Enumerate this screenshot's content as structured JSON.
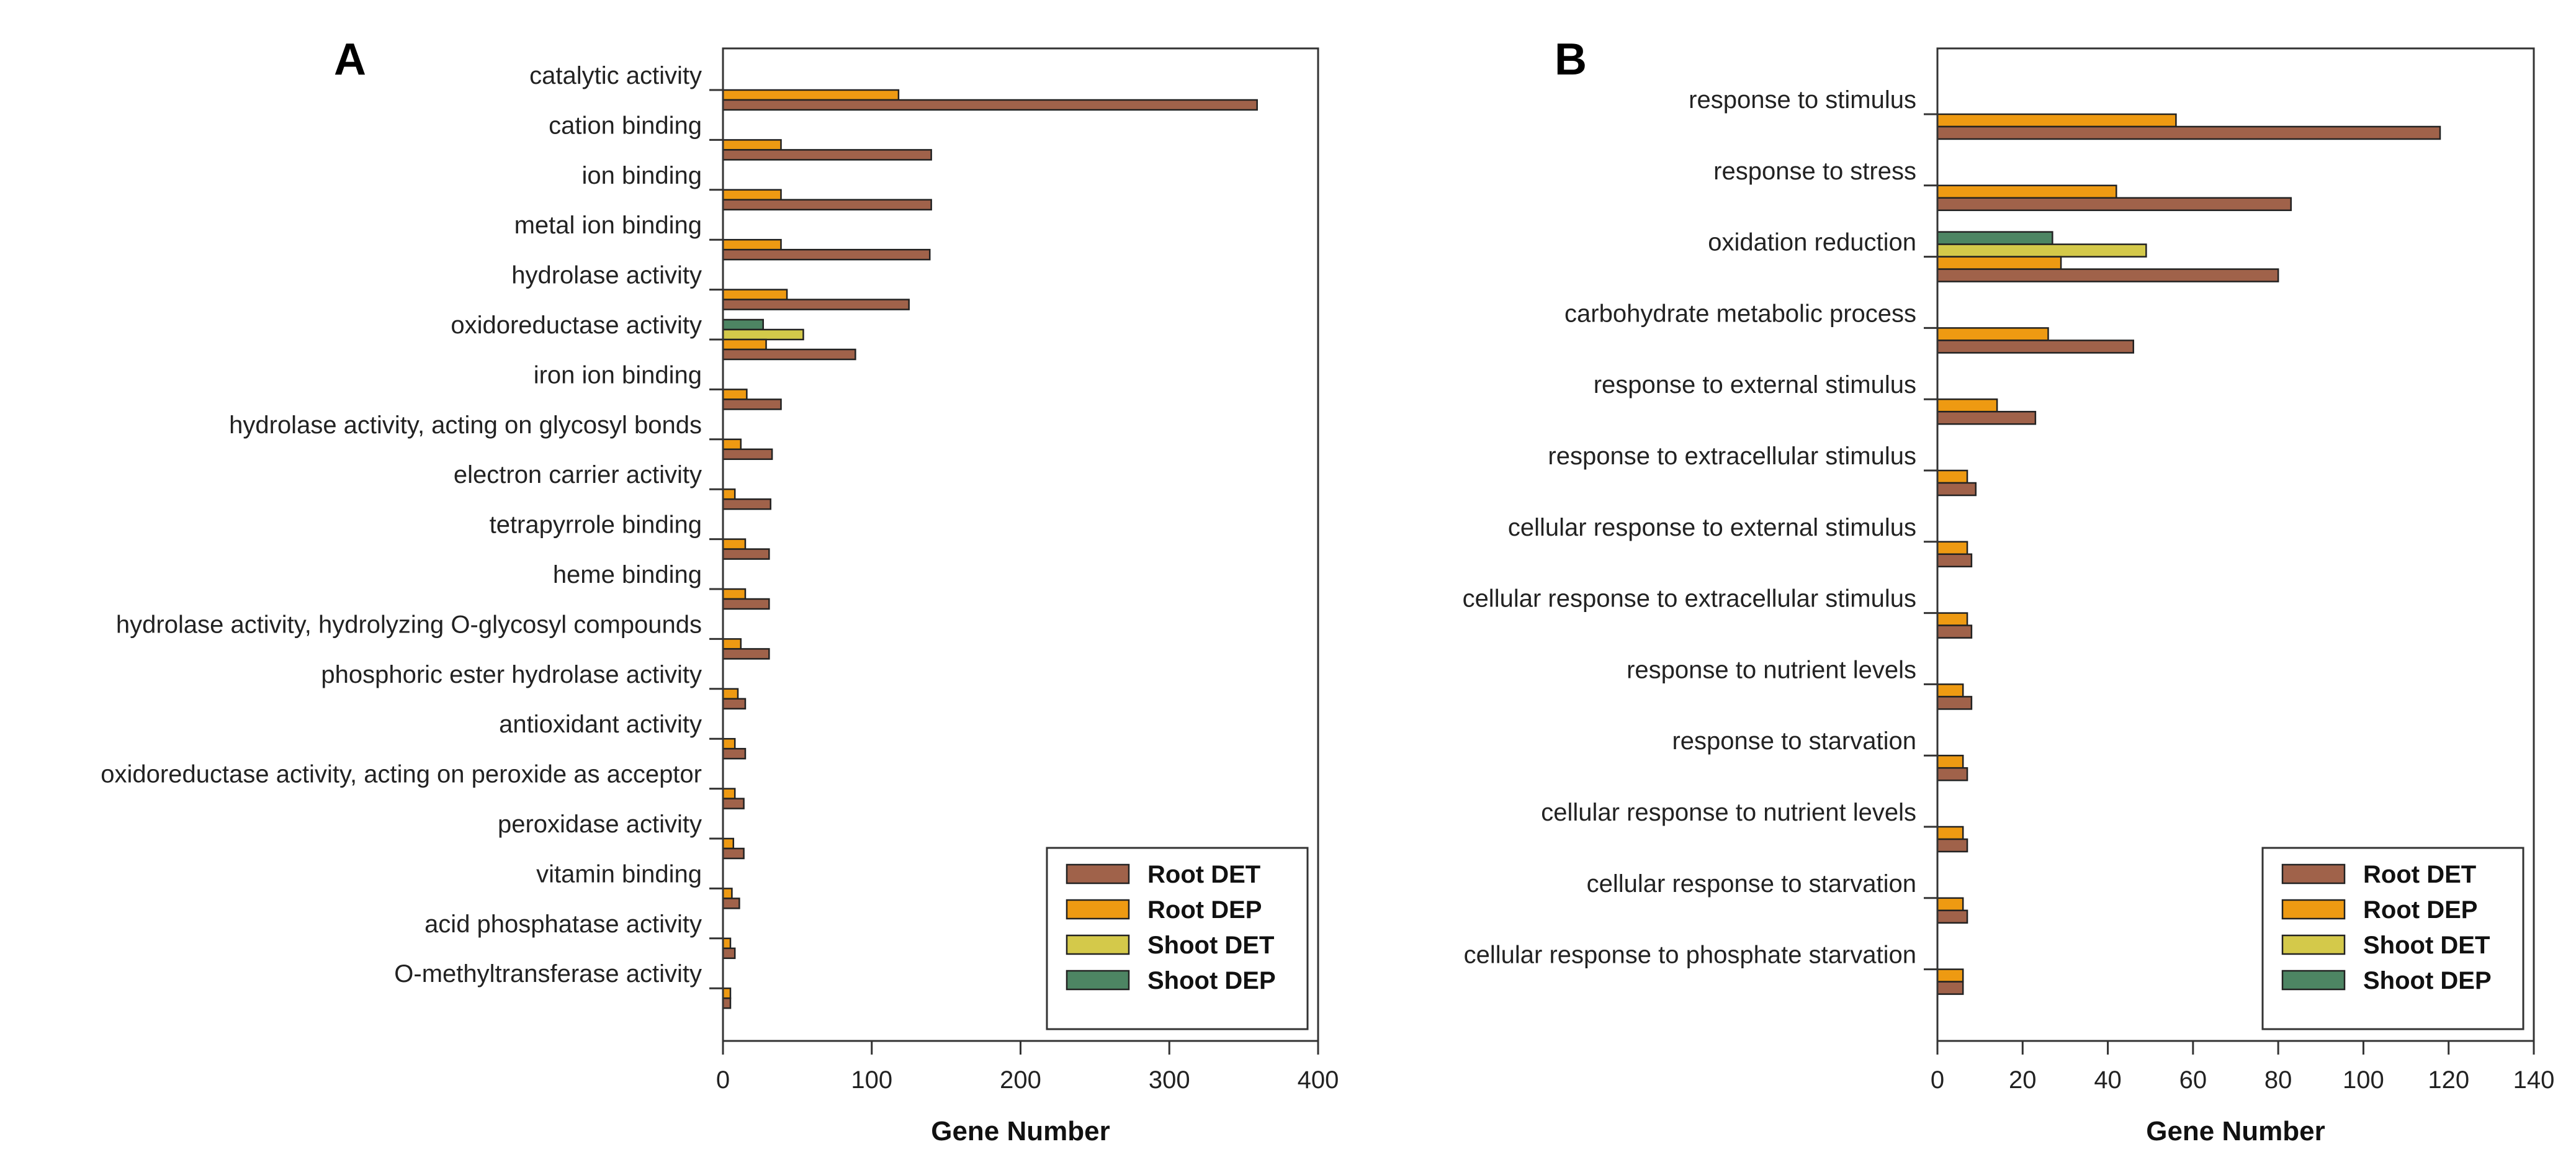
{
  "colors": {
    "root_det": "#a0624a",
    "root_dep": "#ee9a12",
    "shoot_det": "#d4c94a",
    "shoot_dep": "#4d8563"
  },
  "chart_data": [
    {
      "panel": "A",
      "type": "bar",
      "orientation": "horizontal",
      "xlabel": "Gene Number",
      "xlim": [
        0,
        400
      ],
      "xticks": [
        0,
        100,
        200,
        300,
        400
      ],
      "legend_position": "bottom-right",
      "legend_entries": [
        "Root DET",
        "Root DEP",
        "Shoot DET",
        "Shoot DEP"
      ],
      "categories": [
        "catalytic activity",
        "cation binding",
        "ion binding",
        "metal ion binding",
        "hydrolase activity",
        "oxidoreductase activity",
        "iron ion binding",
        "hydrolase activity, acting on glycosyl bonds",
        "electron carrier activity",
        "tetrapyrrole binding",
        "heme binding",
        "hydrolase activity, hydrolyzing O-glycosyl compounds",
        "phosphoric ester hydrolase activity",
        "antioxidant activity",
        "oxidoreductase activity, acting on peroxide as acceptor",
        "peroxidase activity",
        "vitamin binding",
        "acid phosphatase activity",
        "O-methyltransferase activity"
      ],
      "series": [
        {
          "name": "Shoot DEP",
          "key": "shoot_dep",
          "values": [
            0,
            0,
            0,
            0,
            0,
            27,
            0,
            0,
            0,
            0,
            0,
            0,
            0,
            0,
            0,
            0,
            0,
            0,
            0
          ]
        },
        {
          "name": "Shoot DET",
          "key": "shoot_det",
          "values": [
            0,
            0,
            0,
            0,
            0,
            54,
            0,
            0,
            0,
            0,
            0,
            0,
            0,
            0,
            0,
            0,
            0,
            0,
            0
          ]
        },
        {
          "name": "Root DEP",
          "key": "root_dep",
          "values": [
            118,
            39,
            39,
            39,
            43,
            29,
            16,
            12,
            8,
            15,
            15,
            12,
            10,
            8,
            8,
            7,
            6,
            5,
            5
          ]
        },
        {
          "name": "Root DET",
          "key": "root_det",
          "values": [
            359,
            140,
            140,
            139,
            125,
            89,
            39,
            33,
            32,
            31,
            31,
            31,
            15,
            15,
            14,
            14,
            11,
            8,
            5
          ]
        }
      ]
    },
    {
      "panel": "B",
      "type": "bar",
      "orientation": "horizontal",
      "xlabel": "Gene Number",
      "xlim": [
        0,
        140
      ],
      "xticks": [
        0,
        20,
        40,
        60,
        80,
        100,
        120,
        140
      ],
      "legend_position": "bottom-right",
      "legend_entries": [
        "Root DET",
        "Root DEP",
        "Shoot DET",
        "Shoot DEP"
      ],
      "categories": [
        "response to stimulus",
        "response to stress",
        "oxidation reduction",
        "carbohydrate metabolic process",
        "response to external stimulus",
        "response to extracellular stimulus",
        "cellular response to external stimulus",
        "cellular response to extracellular stimulus",
        "response to nutrient levels",
        "response to starvation",
        "cellular response to nutrient levels",
        "cellular response to starvation",
        "cellular response to phosphate starvation"
      ],
      "series": [
        {
          "name": "Shoot DEP",
          "key": "shoot_dep",
          "values": [
            0,
            0,
            27,
            0,
            0,
            0,
            0,
            0,
            0,
            0,
            0,
            0,
            0
          ]
        },
        {
          "name": "Shoot DET",
          "key": "shoot_det",
          "values": [
            0,
            0,
            49,
            0,
            0,
            0,
            0,
            0,
            0,
            0,
            0,
            0,
            0
          ]
        },
        {
          "name": "Root DEP",
          "key": "root_dep",
          "values": [
            56,
            42,
            29,
            26,
            14,
            7,
            7,
            7,
            6,
            6,
            6,
            6,
            6
          ]
        },
        {
          "name": "Root DET",
          "key": "root_det",
          "values": [
            118,
            83,
            80,
            46,
            23,
            9,
            8,
            8,
            8,
            7,
            7,
            7,
            6
          ]
        }
      ]
    }
  ]
}
